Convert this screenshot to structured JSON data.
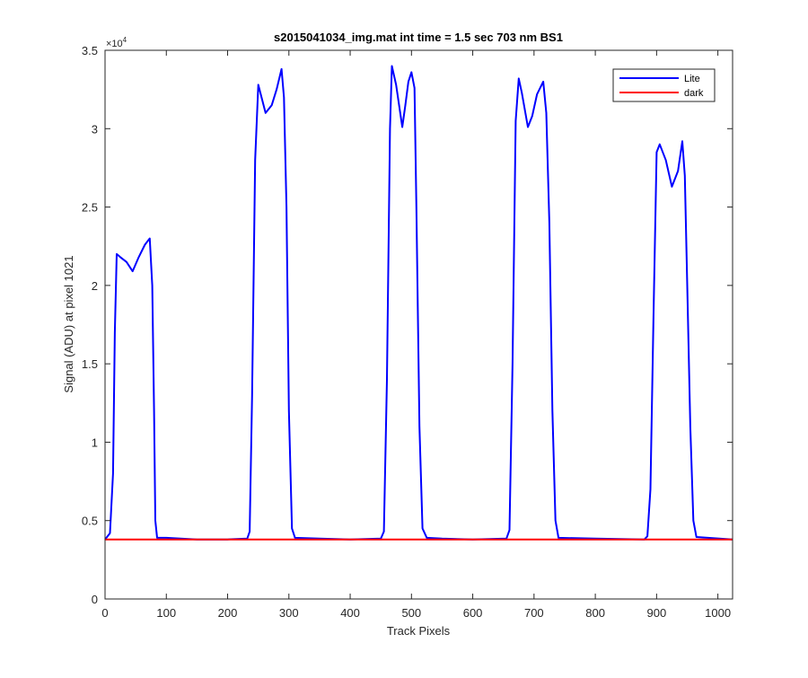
{
  "chart_data": {
    "type": "line",
    "title": "s2015041034_img.mat int time = 1.5 sec  703 nm BS1",
    "xlabel": "Track Pixels",
    "ylabel": "Signal (ADU) at pixel 1021",
    "xlim": [
      0,
      1024
    ],
    "ylim": [
      0,
      35000
    ],
    "x_ticks": [
      0,
      100,
      200,
      300,
      400,
      500,
      600,
      700,
      800,
      900,
      1000
    ],
    "y_ticks": [
      0,
      5000,
      10000,
      15000,
      20000,
      25000,
      30000,
      35000
    ],
    "y_tick_labels": [
      "0",
      "0.5",
      "1",
      "1.5",
      "2",
      "2.5",
      "3",
      "3.5"
    ],
    "y_multiplier_label": "×10",
    "y_multiplier_exponent": "4",
    "grid": false,
    "legend_position": "top-right",
    "series": [
      {
        "name": "Lite",
        "color": "#0000ff",
        "x": [
          0,
          8,
          13,
          16,
          19,
          25,
          35,
          45,
          55,
          65,
          73,
          77,
          80,
          82,
          85,
          100,
          150,
          200,
          232,
          236,
          240,
          245,
          250,
          262,
          272,
          280,
          288,
          292,
          296,
          300,
          305,
          310,
          350,
          400,
          450,
          455,
          460,
          465,
          468,
          475,
          485,
          490,
          495,
          500,
          505,
          508,
          513,
          518,
          525,
          550,
          600,
          655,
          660,
          665,
          670,
          675,
          680,
          690,
          697,
          705,
          715,
          720,
          725,
          730,
          735,
          740,
          800,
          880,
          885,
          890,
          895,
          900,
          905,
          915,
          925,
          935,
          942,
          946,
          950,
          955,
          960,
          965,
          1024
        ],
        "y": [
          3800,
          4200,
          8000,
          17000,
          22000,
          21800,
          21500,
          20900,
          21800,
          22600,
          23000,
          20000,
          12000,
          5000,
          3900,
          3900,
          3800,
          3800,
          3850,
          4300,
          13000,
          28000,
          32800,
          31000,
          31500,
          32500,
          33800,
          32000,
          25000,
          12000,
          4500,
          3900,
          3850,
          3800,
          3850,
          4300,
          14000,
          30000,
          34000,
          32800,
          30100,
          31500,
          33000,
          33600,
          32600,
          25000,
          11000,
          4500,
          3900,
          3850,
          3800,
          3850,
          4400,
          15000,
          30500,
          33200,
          32300,
          30100,
          30800,
          32200,
          33000,
          31000,
          24000,
          12000,
          5000,
          3900,
          3850,
          3800,
          4000,
          7000,
          18000,
          28500,
          29000,
          28000,
          26300,
          27300,
          29200,
          27000,
          20000,
          11000,
          5000,
          3950,
          3800
        ]
      },
      {
        "name": "dark",
        "color": "#ff0000",
        "x": [
          0,
          1024
        ],
        "y": [
          3800,
          3800
        ]
      }
    ]
  }
}
